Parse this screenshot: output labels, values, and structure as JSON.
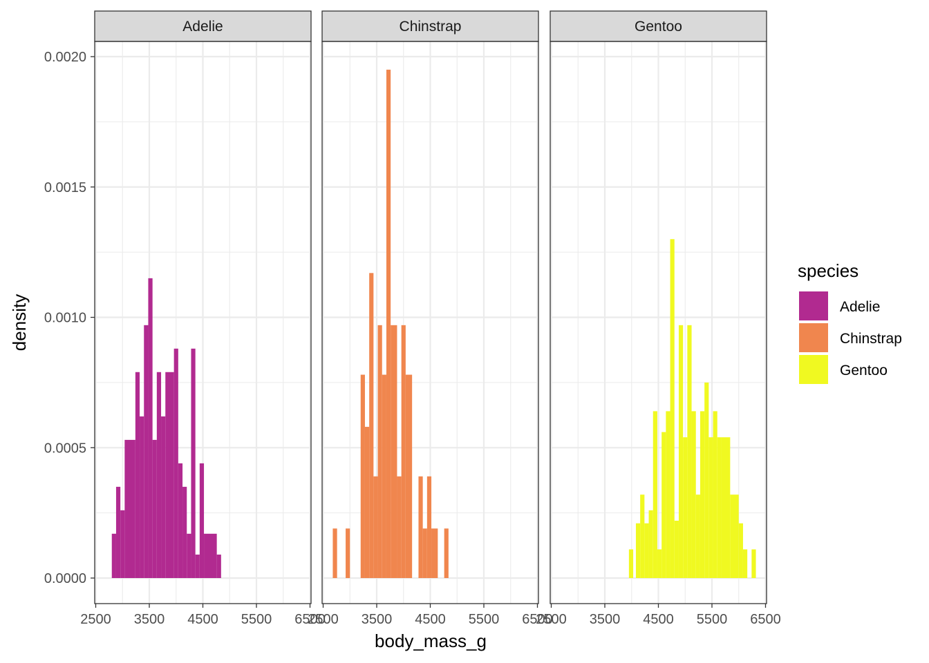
{
  "chart_data": {
    "type": "bar",
    "subtype": "faceted-histogram",
    "title": "",
    "xlabel": "body_mass_g",
    "ylabel": "density",
    "xlim": [
      2500,
      6500
    ],
    "ylim": [
      0,
      0.002
    ],
    "x_ticks": [
      "2500",
      "3500",
      "4500",
      "5500",
      "6500"
    ],
    "y_ticks": [
      "0.0000",
      "0.0005",
      "0.0010",
      "0.0015",
      "0.0020"
    ],
    "y_tick_values": [
      0,
      0.0005,
      0.001,
      0.0015,
      0.002
    ],
    "x_tick_values": [
      2500,
      3500,
      4500,
      5500,
      6500
    ],
    "x_minor_values": [
      3000,
      4000,
      5000,
      6000
    ],
    "y_minor_values": [
      0.00025,
      0.00075,
      0.00125,
      0.00175
    ],
    "grid": true,
    "legend_position": "right",
    "legend_title": "species",
    "panels": [
      {
        "name": "Adelie",
        "color": "#B12A90",
        "bins": [
          {
            "x0": 2800,
            "x1": 2880,
            "y": 0.00017
          },
          {
            "x0": 2880,
            "x1": 2960,
            "y": 0.00035
          },
          {
            "x0": 2960,
            "x1": 3040,
            "y": 0.00026
          },
          {
            "x0": 3040,
            "x1": 3240,
            "y": 0.00053
          },
          {
            "x0": 3240,
            "x1": 3320,
            "y": 0.00079
          },
          {
            "x0": 3320,
            "x1": 3400,
            "y": 0.00062
          },
          {
            "x0": 3400,
            "x1": 3480,
            "y": 0.00097
          },
          {
            "x0": 3480,
            "x1": 3560,
            "y": 0.00115
          },
          {
            "x0": 3560,
            "x1": 3640,
            "y": 0.00053
          },
          {
            "x0": 3640,
            "x1": 3720,
            "y": 0.00079
          },
          {
            "x0": 3720,
            "x1": 3800,
            "y": 0.00062
          },
          {
            "x0": 3800,
            "x1": 3960,
            "y": 0.00079
          },
          {
            "x0": 3960,
            "x1": 4040,
            "y": 0.00088
          },
          {
            "x0": 4040,
            "x1": 4120,
            "y": 0.00044
          },
          {
            "x0": 4120,
            "x1": 4200,
            "y": 0.00035
          },
          {
            "x0": 4200,
            "x1": 4280,
            "y": 0.00017
          },
          {
            "x0": 4280,
            "x1": 4360,
            "y": 0.00088
          },
          {
            "x0": 4360,
            "x1": 4440,
            "y": 9e-05
          },
          {
            "x0": 4440,
            "x1": 4520,
            "y": 0.00044
          },
          {
            "x0": 4520,
            "x1": 4760,
            "y": 0.00017
          },
          {
            "x0": 4760,
            "x1": 4840,
            "y": 9e-05
          }
        ]
      },
      {
        "name": "Chinstrap",
        "color": "#F0864E",
        "bins": [
          {
            "x0": 2680,
            "x1": 2760,
            "y": 0.00019
          },
          {
            "x0": 2920,
            "x1": 3000,
            "y": 0.00019
          },
          {
            "x0": 3200,
            "x1": 3280,
            "y": 0.00078
          },
          {
            "x0": 3280,
            "x1": 3360,
            "y": 0.00058
          },
          {
            "x0": 3360,
            "x1": 3440,
            "y": 0.00117
          },
          {
            "x0": 3440,
            "x1": 3520,
            "y": 0.00039
          },
          {
            "x0": 3520,
            "x1": 3600,
            "y": 0.00097
          },
          {
            "x0": 3600,
            "x1": 3680,
            "y": 0.00078
          },
          {
            "x0": 3680,
            "x1": 3760,
            "y": 0.00195
          },
          {
            "x0": 3760,
            "x1": 3880,
            "y": 0.00097
          },
          {
            "x0": 3880,
            "x1": 3960,
            "y": 0.00039
          },
          {
            "x0": 3960,
            "x1": 4040,
            "y": 0.00097
          },
          {
            "x0": 4040,
            "x1": 4160,
            "y": 0.00078
          },
          {
            "x0": 4280,
            "x1": 4360,
            "y": 0.00039
          },
          {
            "x0": 4360,
            "x1": 4440,
            "y": 0.00019
          },
          {
            "x0": 4440,
            "x1": 4520,
            "y": 0.00039
          },
          {
            "x0": 4520,
            "x1": 4640,
            "y": 0.00019
          },
          {
            "x0": 4760,
            "x1": 4840,
            "y": 0.00019
          }
        ]
      },
      {
        "name": "Gentoo",
        "color": "#F0F921",
        "bins": [
          {
            "x0": 3950,
            "x1": 4030,
            "y": 0.00011
          },
          {
            "x0": 4080,
            "x1": 4160,
            "y": 0.00021
          },
          {
            "x0": 4160,
            "x1": 4240,
            "y": 0.00032
          },
          {
            "x0": 4240,
            "x1": 4320,
            "y": 0.00021
          },
          {
            "x0": 4320,
            "x1": 4400,
            "y": 0.00026
          },
          {
            "x0": 4400,
            "x1": 4480,
            "y": 0.00064
          },
          {
            "x0": 4480,
            "x1": 4560,
            "y": 0.00011
          },
          {
            "x0": 4560,
            "x1": 4640,
            "y": 0.00056
          },
          {
            "x0": 4640,
            "x1": 4720,
            "y": 0.00064
          },
          {
            "x0": 4720,
            "x1": 4800,
            "y": 0.0013
          },
          {
            "x0": 4800,
            "x1": 4880,
            "y": 0.00022
          },
          {
            "x0": 4880,
            "x1": 4960,
            "y": 0.00097
          },
          {
            "x0": 4960,
            "x1": 5040,
            "y": 0.00054
          },
          {
            "x0": 5040,
            "x1": 5120,
            "y": 0.00097
          },
          {
            "x0": 5120,
            "x1": 5200,
            "y": 0.00064
          },
          {
            "x0": 5200,
            "x1": 5280,
            "y": 0.00032
          },
          {
            "x0": 5280,
            "x1": 5360,
            "y": 0.00064
          },
          {
            "x0": 5360,
            "x1": 5440,
            "y": 0.00075
          },
          {
            "x0": 5440,
            "x1": 5520,
            "y": 0.00054
          },
          {
            "x0": 5520,
            "x1": 5600,
            "y": 0.00064
          },
          {
            "x0": 5600,
            "x1": 5680,
            "y": 0.00054
          },
          {
            "x0": 5680,
            "x1": 5840,
            "y": 0.00054
          },
          {
            "x0": 5840,
            "x1": 6000,
            "y": 0.00032
          },
          {
            "x0": 6000,
            "x1": 6080,
            "y": 0.00021
          },
          {
            "x0": 6080,
            "x1": 6160,
            "y": 0.00011
          },
          {
            "x0": 6240,
            "x1": 6320,
            "y": 0.00011
          }
        ]
      }
    ]
  }
}
